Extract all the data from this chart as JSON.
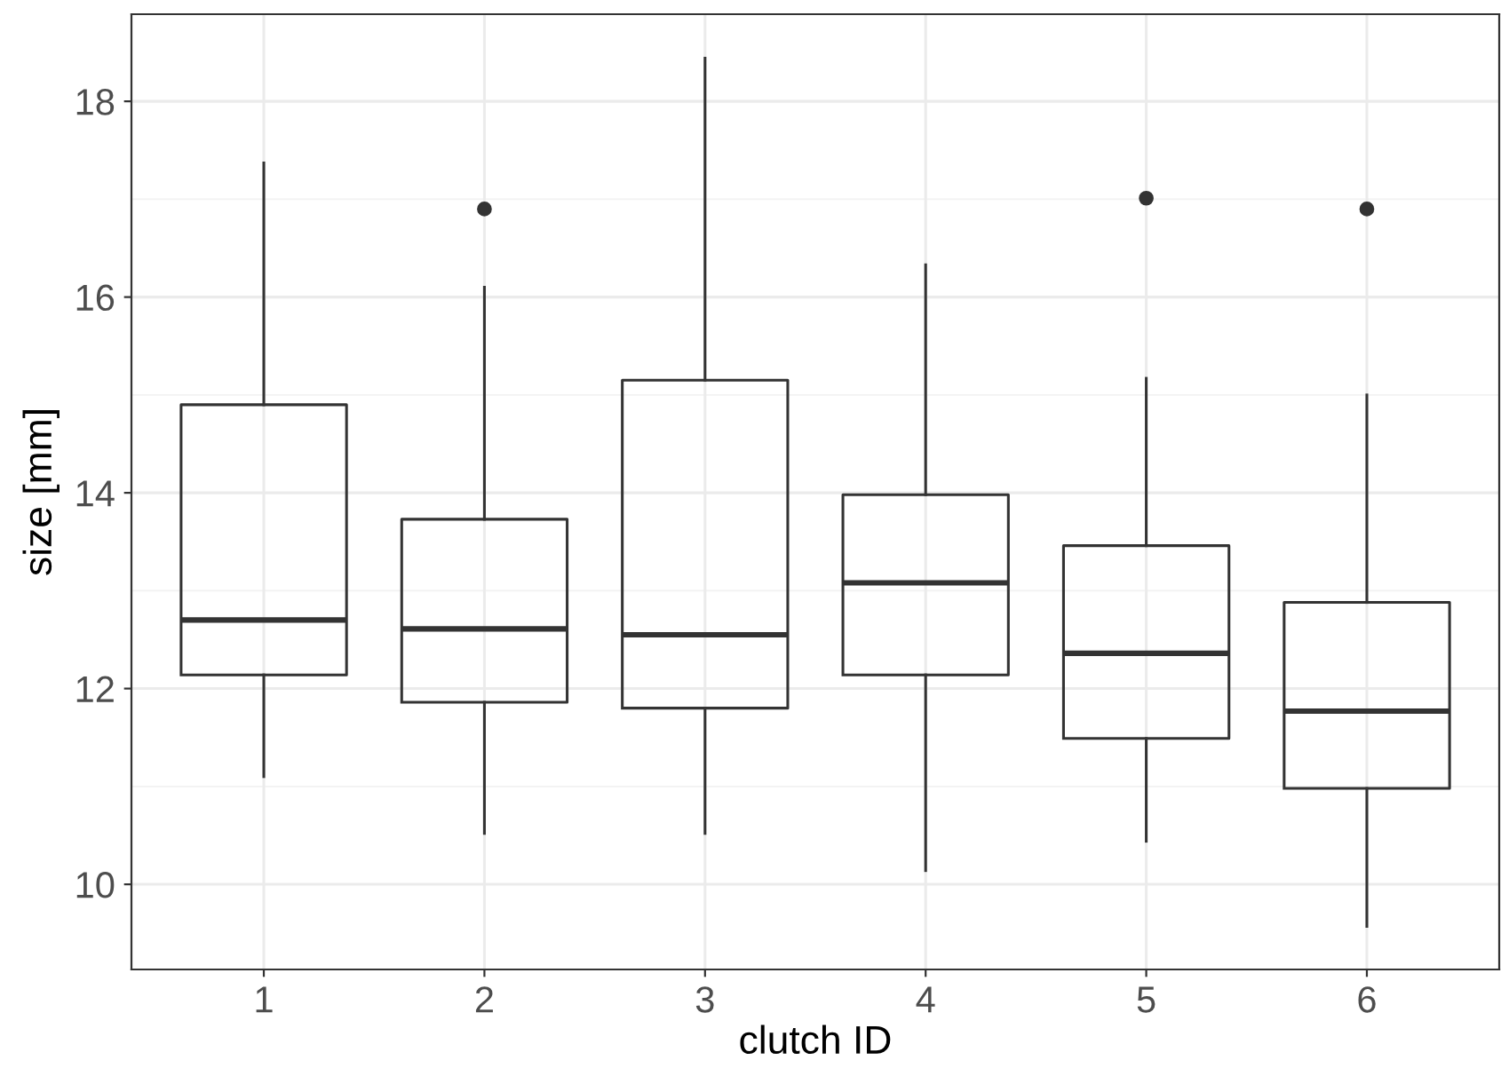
{
  "chart_data": {
    "type": "box",
    "xlabel": "clutch ID",
    "ylabel": "size [mm]",
    "categories": [
      "1",
      "2",
      "3",
      "4",
      "5",
      "6"
    ],
    "boxes": [
      {
        "low": 11.1,
        "q1": 12.14,
        "median": 12.7,
        "q3": 14.9,
        "high": 17.37
      },
      {
        "low": 10.52,
        "q1": 11.86,
        "median": 12.61,
        "q3": 13.73,
        "high": 16.1,
        "outliers": [
          16.9
        ]
      },
      {
        "low": 10.52,
        "q1": 11.8,
        "median": 12.55,
        "q3": 15.15,
        "high": 18.44
      },
      {
        "low": 10.14,
        "q1": 12.14,
        "median": 13.08,
        "q3": 13.98,
        "high": 16.33
      },
      {
        "low": 10.44,
        "q1": 11.49,
        "median": 12.36,
        "q3": 13.46,
        "high": 15.17,
        "outliers": [
          17.01
        ]
      },
      {
        "low": 9.57,
        "q1": 10.98,
        "median": 11.77,
        "q3": 12.88,
        "high": 15.0,
        "outliers": [
          16.9
        ]
      }
    ],
    "ylim": [
      9.13,
      18.89
    ],
    "yticks": [
      10,
      12,
      14,
      16,
      18
    ],
    "grid": true
  }
}
